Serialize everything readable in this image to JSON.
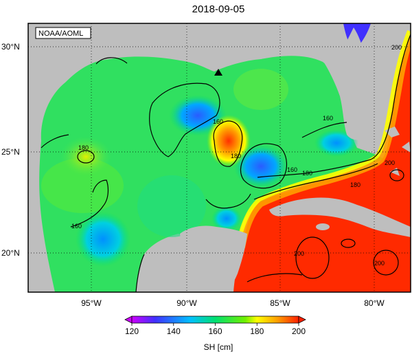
{
  "title": "2018-09-05",
  "source_label": "NOAA/AOML",
  "colorbar": {
    "label": "SH [cm]",
    "ticks": [
      "120",
      "140",
      "160",
      "180",
      "200"
    ],
    "colors": [
      "#cc00ff",
      "#4030ff",
      "#00c0ff",
      "#00e070",
      "#70f000",
      "#ffff00",
      "#ffa000",
      "#ff2000"
    ]
  },
  "axes": {
    "lat_ticks": [
      "20°N",
      "25°N",
      "30°N"
    ],
    "lon_ticks": [
      "95°W",
      "90°W",
      "85°W",
      "80°W"
    ]
  },
  "contour_labels": [
    "160",
    "180",
    "160",
    "180",
    "160",
    "180",
    "200",
    "200",
    "200",
    "200",
    "160",
    "180"
  ],
  "colors": {
    "land": "#bebebe",
    "frame": "#000000",
    "background": "#ffffff"
  }
}
